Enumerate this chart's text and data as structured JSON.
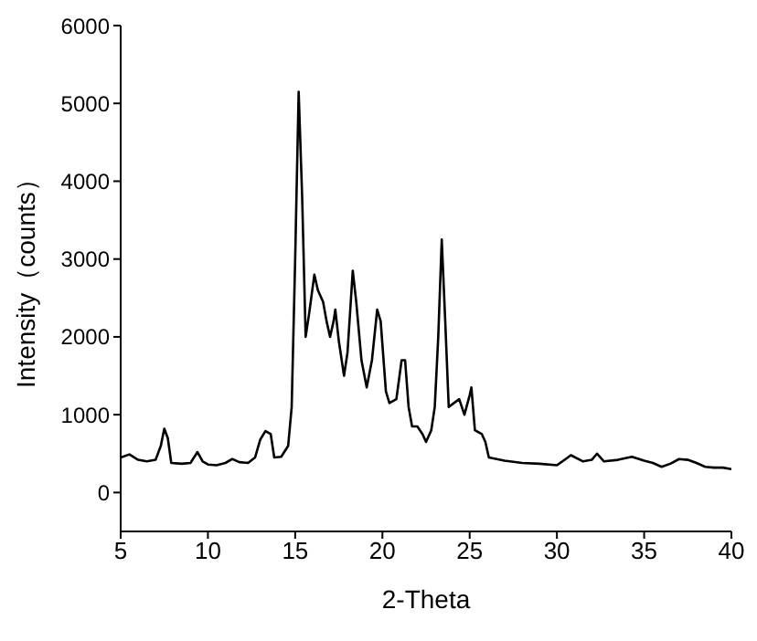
{
  "chart_data": {
    "type": "line",
    "xlabel": "2-Theta",
    "ylabel": "Intensity（counts）",
    "xlim": [
      5,
      40
    ],
    "xticks": [
      5,
      10,
      15,
      20,
      25,
      30,
      35,
      40
    ],
    "ylim": [
      -500,
      6000
    ],
    "yticks": [
      0,
      1000,
      2000,
      3000,
      4000,
      5000,
      6000
    ],
    "series": [
      {
        "color": "#000000",
        "x": [
          5,
          5.5,
          6,
          6.5,
          7,
          7.3,
          7.5,
          7.7,
          7.9,
          8.5,
          9,
          9.4,
          9.7,
          10,
          10.5,
          11,
          11.4,
          11.8,
          12.3,
          12.7,
          13,
          13.3,
          13.6,
          13.8,
          14.2,
          14.6,
          14.8,
          15,
          15.2,
          15.4,
          15.6,
          15.8,
          16.1,
          16.3,
          16.6,
          16.8,
          17,
          17.2,
          17.3,
          17.5,
          17.8,
          18,
          18.3,
          18.5,
          18.8,
          19.1,
          19.4,
          19.7,
          19.9,
          20.2,
          20.4,
          20.8,
          21.1,
          21.3,
          21.5,
          21.7,
          22,
          22.3,
          22.5,
          22.8,
          23,
          23.2,
          23.4,
          23.6,
          23.8,
          24.1,
          24.4,
          24.7,
          25,
          25.1,
          25.3,
          25.7,
          25.9,
          26.1,
          27,
          28,
          29,
          30,
          30.5,
          30.8,
          31.5,
          32,
          32.3,
          32.7,
          33.5,
          34.3,
          35,
          35.5,
          36,
          36.5,
          37,
          37.5,
          38,
          38.5,
          39,
          39.5,
          40
        ],
        "values": [
          450,
          490,
          420,
          400,
          420,
          600,
          820,
          700,
          380,
          370,
          380,
          520,
          400,
          360,
          350,
          380,
          430,
          390,
          380,
          450,
          680,
          790,
          750,
          450,
          460,
          600,
          1100,
          3000,
          5150,
          3800,
          2000,
          2300,
          2800,
          2600,
          2450,
          2200,
          2000,
          2200,
          2350,
          1950,
          1500,
          1800,
          2850,
          2450,
          1700,
          1350,
          1700,
          2350,
          2200,
          1300,
          1150,
          1200,
          1700,
          1700,
          1100,
          850,
          850,
          750,
          650,
          800,
          1100,
          2000,
          3250,
          2200,
          1100,
          1150,
          1200,
          1000,
          1250,
          1350,
          800,
          750,
          650,
          450,
          410,
          380,
          370,
          350,
          430,
          480,
          400,
          420,
          500,
          400,
          420,
          460,
          410,
          380,
          330,
          370,
          430,
          420,
          380,
          330,
          320,
          320,
          300
        ]
      }
    ]
  }
}
